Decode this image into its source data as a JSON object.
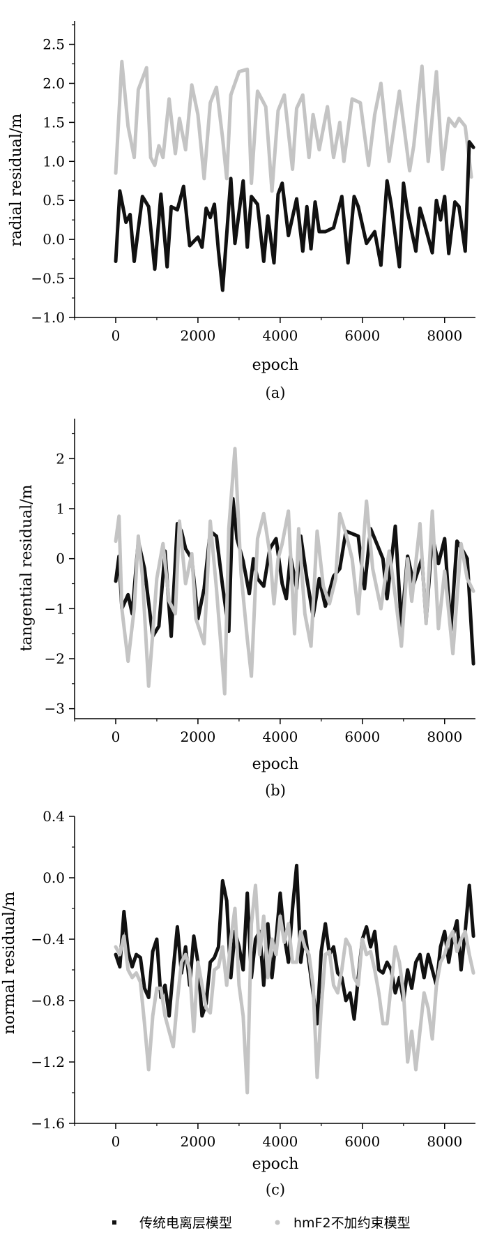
{
  "colors": {
    "series1": "#111111",
    "series2": "#c4c4c4",
    "axis": "#000000"
  },
  "legend": {
    "items": [
      {
        "label": "传统电离层模型",
        "color": "#111111",
        "marker": "square"
      },
      {
        "label": "hmF2不加约束模型",
        "color": "#c4c4c4",
        "marker": "circle"
      }
    ]
  },
  "chart_data": [
    {
      "type": "line",
      "caption": "(a)",
      "xlabel": "epoch",
      "ylabel": "radial residual/m",
      "xlim": [
        -1000,
        8750
      ],
      "ylim": [
        -1.0,
        2.8
      ],
      "xticks": [
        0,
        2000,
        4000,
        6000,
        8000
      ],
      "xtick_labels": [
        "0",
        "2000",
        "4000",
        "6000",
        "8000"
      ],
      "yticks": [
        -1.0,
        -0.5,
        0.0,
        0.5,
        1.0,
        1.5,
        2.0,
        2.5
      ],
      "ytick_labels": [
        "−1.0",
        "−0.5",
        "0.0",
        "0.5",
        "1.0",
        "1.5",
        "2.0",
        "2.5"
      ],
      "series": [
        {
          "name": "传统电离层模型",
          "x": [
            0,
            100,
            250,
            350,
            450,
            650,
            800,
            950,
            1100,
            1250,
            1350,
            1500,
            1650,
            1800,
            2000,
            2100,
            2200,
            2300,
            2400,
            2500,
            2600,
            2800,
            2900,
            3100,
            3200,
            3300,
            3450,
            3600,
            3700,
            3850,
            3950,
            4050,
            4200,
            4400,
            4550,
            4650,
            4750,
            4850,
            4950,
            5100,
            5300,
            5500,
            5650,
            5800,
            5900,
            6100,
            6300,
            6450,
            6600,
            6700,
            6900,
            7000,
            7100,
            7300,
            7400,
            7500,
            7700,
            7800,
            7900,
            8000,
            8100,
            8250,
            8350,
            8500,
            8600,
            8700
          ],
          "values": [
            -0.28,
            0.62,
            0.22,
            0.32,
            -0.28,
            0.55,
            0.42,
            -0.38,
            0.58,
            -0.35,
            0.42,
            0.38,
            0.68,
            -0.08,
            0.03,
            -0.1,
            0.4,
            0.28,
            0.45,
            -0.15,
            -0.65,
            0.78,
            -0.05,
            0.75,
            -0.1,
            0.55,
            0.45,
            -0.28,
            0.3,
            -0.3,
            0.58,
            0.72,
            0.05,
            0.52,
            -0.15,
            0.42,
            -0.12,
            0.48,
            0.1,
            0.1,
            0.15,
            0.55,
            -0.3,
            0.55,
            0.42,
            -0.05,
            0.1,
            -0.33,
            0.75,
            0.45,
            -0.35,
            0.72,
            0.35,
            -0.15,
            0.4,
            0.22,
            -0.17,
            0.5,
            0.25,
            0.55,
            -0.18,
            0.48,
            0.42,
            -0.15,
            1.25,
            1.18
          ]
        },
        {
          "name": "hmF2不加约束模型",
          "x": [
            0,
            150,
            300,
            450,
            550,
            750,
            850,
            950,
            1050,
            1150,
            1300,
            1450,
            1550,
            1700,
            1850,
            2000,
            2150,
            2300,
            2450,
            2600,
            2700,
            2800,
            3000,
            3200,
            3300,
            3450,
            3650,
            3800,
            3950,
            4100,
            4300,
            4400,
            4550,
            4700,
            4800,
            4950,
            5150,
            5300,
            5450,
            5550,
            5750,
            5950,
            6150,
            6300,
            6450,
            6650,
            6900,
            7150,
            7250,
            7450,
            7600,
            7800,
            7950,
            8100,
            8250,
            8350,
            8500,
            8650
          ],
          "values": [
            0.85,
            2.28,
            1.45,
            1.05,
            1.92,
            2.2,
            1.05,
            0.95,
            1.2,
            1.05,
            1.8,
            1.1,
            1.55,
            1.15,
            1.98,
            1.6,
            0.78,
            1.75,
            1.95,
            1.3,
            0.78,
            1.85,
            2.15,
            2.18,
            0.72,
            1.9,
            1.7,
            0.62,
            1.65,
            1.85,
            0.9,
            1.68,
            1.85,
            1.05,
            1.6,
            1.15,
            1.7,
            1.05,
            1.5,
            1.0,
            1.8,
            1.75,
            0.95,
            1.6,
            2.0,
            1.0,
            1.9,
            0.88,
            1.2,
            2.22,
            1.0,
            2.15,
            0.9,
            1.55,
            1.45,
            1.55,
            1.45,
            0.8
          ]
        }
      ]
    },
    {
      "type": "line",
      "caption": "(b)",
      "xlabel": "epoch",
      "ylabel": "tangential residual/m",
      "xlim": [
        -1000,
        8750
      ],
      "ylim": [
        -3.2,
        2.8
      ],
      "xticks": [
        0,
        2000,
        4000,
        6000,
        8000
      ],
      "xtick_labels": [
        "0",
        "2000",
        "4000",
        "6000",
        "8000"
      ],
      "yticks": [
        -3,
        -2,
        -1,
        0,
        1,
        2
      ],
      "ytick_labels": [
        "−3",
        "−2",
        "−1",
        "0",
        "1",
        "2"
      ],
      "series": [
        {
          "name": "传统电离层模型",
          "x": [
            0,
            80,
            150,
            300,
            400,
            550,
            700,
            900,
            1050,
            1200,
            1350,
            1500,
            1600,
            1700,
            1850,
            2000,
            2150,
            2300,
            2450,
            2600,
            2750,
            2850,
            2950,
            3100,
            3250,
            3350,
            3450,
            3600,
            3750,
            3900,
            4050,
            4150,
            4250,
            4400,
            4500,
            4650,
            4800,
            4950,
            5100,
            5300,
            5450,
            5600,
            5750,
            5900,
            6050,
            6200,
            6350,
            6500,
            6600,
            6800,
            6950,
            7100,
            7250,
            7450,
            7550,
            7700,
            7850,
            8000,
            8150,
            8300,
            8450,
            8550,
            8700
          ],
          "values": [
            -0.45,
            0.05,
            -1.0,
            -0.72,
            -1.1,
            0.35,
            -0.2,
            -1.55,
            -1.35,
            0.15,
            -1.55,
            0.7,
            0.55,
            0.2,
            0.0,
            -1.2,
            -0.6,
            0.55,
            0.45,
            -0.55,
            -1.45,
            1.2,
            0.4,
            -0.05,
            -0.7,
            0.0,
            -0.4,
            -0.55,
            0.2,
            0.4,
            -0.5,
            -0.8,
            0.05,
            -0.6,
            0.45,
            -0.4,
            -1.15,
            -0.4,
            -0.95,
            -0.35,
            -0.2,
            0.55,
            0.5,
            0.45,
            -0.6,
            0.6,
            0.3,
            0.0,
            -0.8,
            0.65,
            -1.35,
            0.05,
            -0.5,
            0.0,
            -1.25,
            0.45,
            -0.1,
            0.4,
            -1.45,
            0.35,
            0.15,
            0.0,
            -2.1
          ]
        },
        {
          "name": "hmF2不加约束模型",
          "x": [
            0,
            80,
            150,
            300,
            450,
            550,
            650,
            800,
            900,
            1000,
            1150,
            1300,
            1450,
            1550,
            1700,
            1850,
            1950,
            2150,
            2300,
            2450,
            2650,
            2750,
            2900,
            3050,
            3200,
            3300,
            3450,
            3600,
            3750,
            3850,
            3950,
            4050,
            4200,
            4350,
            4450,
            4600,
            4750,
            4900,
            5050,
            5200,
            5350,
            5450,
            5600,
            5750,
            5900,
            6100,
            6250,
            6450,
            6650,
            6800,
            6950,
            7100,
            7200,
            7400,
            7550,
            7700,
            7850,
            8000,
            8200,
            8400,
            8550,
            8700
          ],
          "values": [
            0.35,
            0.85,
            -1.0,
            -2.05,
            -1.0,
            0.45,
            -0.35,
            -2.55,
            -1.5,
            -0.4,
            0.3,
            -0.85,
            -1.1,
            0.75,
            -0.5,
            0.1,
            -1.2,
            -1.7,
            0.75,
            -0.6,
            -2.7,
            0.6,
            2.2,
            -0.3,
            -1.6,
            -2.35,
            0.4,
            0.9,
            0.1,
            -0.9,
            0.0,
            0.3,
            0.95,
            -1.5,
            0.6,
            -1.1,
            -1.75,
            0.55,
            -0.55,
            -0.9,
            -0.4,
            0.9,
            0.5,
            0.0,
            -1.1,
            1.15,
            -0.2,
            -1.0,
            0.15,
            -0.75,
            -1.75,
            0.0,
            -0.85,
            0.7,
            -1.3,
            0.95,
            -1.4,
            -0.25,
            -1.9,
            0.3,
            -0.4,
            -0.65
          ]
        }
      ]
    },
    {
      "type": "line",
      "caption": "(c)",
      "xlabel": "epoch",
      "ylabel": "normal residual/m",
      "xlim": [
        -1000,
        8750
      ],
      "ylim": [
        -1.6,
        0.4
      ],
      "xticks": [
        0,
        2000,
        4000,
        6000,
        8000
      ],
      "xtick_labels": [
        "0",
        "2000",
        "4000",
        "6000",
        "8000"
      ],
      "yticks": [
        -1.6,
        -1.2,
        -0.8,
        -0.4,
        0.0,
        0.4
      ],
      "ytick_labels": [
        "−1.6",
        "−1.2",
        "−0.8",
        "−0.4",
        "0.0",
        "0.4"
      ],
      "series": [
        {
          "name": "传统电离层模型",
          "x": [
            0,
            100,
            200,
            300,
            400,
            500,
            600,
            700,
            800,
            900,
            1000,
            1100,
            1200,
            1300,
            1400,
            1500,
            1600,
            1700,
            1800,
            1900,
            2000,
            2100,
            2200,
            2300,
            2400,
            2500,
            2600,
            2700,
            2800,
            2900,
            3000,
            3100,
            3200,
            3300,
            3400,
            3500,
            3600,
            3700,
            3800,
            3900,
            4000,
            4100,
            4200,
            4300,
            4400,
            4500,
            4600,
            4700,
            4800,
            4900,
            5000,
            5100,
            5200,
            5300,
            5400,
            5500,
            5600,
            5700,
            5800,
            5900,
            6000,
            6100,
            6200,
            6300,
            6400,
            6500,
            6600,
            6700,
            6800,
            6900,
            7000,
            7100,
            7200,
            7300,
            7400,
            7500,
            7600,
            7700,
            7800,
            7900,
            8000,
            8100,
            8200,
            8300,
            8400,
            8500,
            8600,
            8700
          ],
          "values": [
            -0.5,
            -0.58,
            -0.22,
            -0.48,
            -0.58,
            -0.5,
            -0.52,
            -0.72,
            -0.78,
            -0.48,
            -0.4,
            -0.78,
            -0.7,
            -0.9,
            -0.6,
            -0.32,
            -0.62,
            -0.45,
            -0.7,
            -0.38,
            -0.55,
            -0.9,
            -0.82,
            -0.55,
            -0.52,
            -0.45,
            -0.02,
            -0.15,
            -0.65,
            -0.35,
            -0.45,
            -0.6,
            -0.1,
            -0.65,
            -0.4,
            -0.35,
            -0.7,
            -0.3,
            -0.65,
            -0.4,
            -0.1,
            -0.38,
            -0.55,
            -0.2,
            0.08,
            -0.55,
            -0.35,
            -0.55,
            -0.75,
            -0.95,
            -0.48,
            -0.3,
            -0.5,
            -0.45,
            -0.62,
            -0.65,
            -0.8,
            -0.75,
            -0.92,
            -0.65,
            -0.4,
            -0.32,
            -0.45,
            -0.35,
            -0.6,
            -0.62,
            -0.55,
            -0.6,
            -0.75,
            -0.65,
            -0.8,
            -0.6,
            -0.72,
            -0.55,
            -0.5,
            -0.65,
            -0.5,
            -0.6,
            -0.7,
            -0.45,
            -0.35,
            -0.55,
            -0.38,
            -0.28,
            -0.6,
            -0.35,
            -0.05,
            -0.38
          ]
        },
        {
          "name": "hmF2不加约束模型",
          "x": [
            0,
            100,
            200,
            300,
            400,
            500,
            600,
            700,
            800,
            900,
            1000,
            1100,
            1200,
            1300,
            1400,
            1500,
            1600,
            1700,
            1800,
            1900,
            2000,
            2100,
            2200,
            2300,
            2400,
            2500,
            2600,
            2700,
            2800,
            2900,
            3000,
            3100,
            3200,
            3300,
            3400,
            3500,
            3600,
            3700,
            3800,
            3900,
            4000,
            4100,
            4200,
            4300,
            4400,
            4500,
            4600,
            4700,
            4800,
            4900,
            5000,
            5100,
            5200,
            5300,
            5400,
            5500,
            5600,
            5700,
            5800,
            5900,
            6000,
            6100,
            6200,
            6300,
            6400,
            6500,
            6600,
            6700,
            6800,
            6900,
            7000,
            7100,
            7200,
            7300,
            7400,
            7500,
            7600,
            7700,
            7800,
            7900,
            8000,
            8100,
            8200,
            8300,
            8400,
            8500,
            8600,
            8700
          ],
          "values": [
            -0.45,
            -0.5,
            -0.38,
            -0.6,
            -0.65,
            -0.62,
            -0.68,
            -0.95,
            -1.25,
            -0.9,
            -0.72,
            -0.72,
            -0.9,
            -1.0,
            -1.1,
            -0.8,
            -0.55,
            -0.5,
            -0.6,
            -1.0,
            -0.55,
            -0.7,
            -0.85,
            -0.88,
            -0.6,
            -0.58,
            -0.45,
            -0.7,
            -0.4,
            -0.2,
            -0.7,
            -0.9,
            -1.4,
            -0.3,
            -0.05,
            -0.5,
            -0.25,
            -0.65,
            -0.4,
            -0.5,
            -0.25,
            -0.42,
            -0.3,
            -0.55,
            -0.55,
            -0.35,
            -0.45,
            -0.5,
            -0.7,
            -1.3,
            -0.85,
            -0.5,
            -0.48,
            -0.7,
            -0.75,
            -0.6,
            -0.4,
            -0.45,
            -0.65,
            -0.7,
            -0.4,
            -0.5,
            -0.48,
            -0.6,
            -0.75,
            -0.95,
            -0.95,
            -0.7,
            -0.45,
            -0.55,
            -0.75,
            -1.2,
            -1.0,
            -1.25,
            -1.0,
            -0.75,
            -0.85,
            -1.05,
            -0.7,
            -0.55,
            -0.5,
            -0.4,
            -0.35,
            -0.48,
            -0.4,
            -0.35,
            -0.5,
            -0.62
          ]
        }
      ]
    }
  ]
}
